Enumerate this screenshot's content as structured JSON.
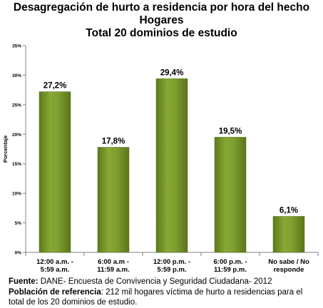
{
  "chart_data": {
    "type": "bar",
    "title": [
      "Desagregación de hurto a residencia por hora del hecho",
      "Hogares",
      "Total 20 dominios de estudio"
    ],
    "ylabel": "Porcentaje",
    "xlabel": "",
    "categories": [
      [
        "12:00 a.m. -",
        "5:59 a.m."
      ],
      [
        "6:00 a.m -",
        "11:59 a.m."
      ],
      [
        "12:00 p.m. -",
        "5:59 p.m."
      ],
      [
        "6:00 p.m. -",
        "11:59 p.m."
      ],
      [
        "No sabe / No",
        "responde"
      ]
    ],
    "values": [
      27.2,
      17.8,
      29.4,
      19.5,
      6.1
    ],
    "data_labels": [
      "27,2%",
      "17,8%",
      "29,4%",
      "19,5%",
      "6,1%"
    ],
    "ylim": [
      0,
      35
    ],
    "yticks": [
      0,
      5,
      10,
      15,
      20,
      25,
      30,
      35
    ],
    "ytick_labels": [
      "0%",
      "5%",
      "10%",
      "15%",
      "20%",
      "25%",
      "30%",
      "35%"
    ],
    "grid": false,
    "legend": "none",
    "bar_color": "#7a9a2c"
  },
  "footer": {
    "source_label": "Fuente:",
    "source_text": " DANE- Encuesta de Convivencia y Seguridad Ciudadana- 2012",
    "population_label": "Población de referencia",
    "population_text": ": 212 mil hogares víctima de hurto a residencias para el total de los  20 dominios de estudio."
  }
}
